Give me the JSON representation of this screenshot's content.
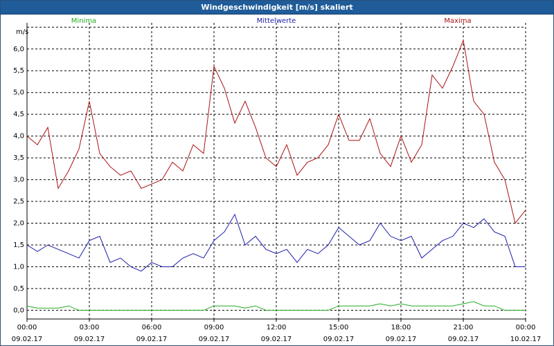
{
  "window": {
    "title": "Windgeschwindigkeit [m/s] skaliert"
  },
  "chart_data": {
    "type": "line",
    "title": "Windgeschwindigkeit [m/s] skaliert",
    "ylabel": "m/s",
    "ylim": [
      -0.2,
      6.6
    ],
    "yticks": [
      0.0,
      0.5,
      1.0,
      1.5,
      2.0,
      2.5,
      3.0,
      3.5,
      4.0,
      4.5,
      5.0,
      5.5,
      6.0
    ],
    "ytick_labels": [
      "0,0",
      "0,5",
      "1,0",
      "1,5",
      "2,0",
      "2,5",
      "3,0",
      "3,5",
      "4,0",
      "4,5",
      "5,0",
      "5,5",
      "6,0"
    ],
    "xlim_hours": [
      0,
      24
    ],
    "xticks": [
      {
        "time": "00:00",
        "date": "09.02.17"
      },
      {
        "time": "03:00",
        "date": "09.02.17"
      },
      {
        "time": "06:00",
        "date": "09.02.17"
      },
      {
        "time": "09:00",
        "date": "09.02.17"
      },
      {
        "time": "12:00",
        "date": "09.02.17"
      },
      {
        "time": "15:00",
        "date": "09.02.17"
      },
      {
        "time": "18:00",
        "date": "09.02.17"
      },
      {
        "time": "21:00",
        "date": "09.02.17"
      },
      {
        "time": "00:00",
        "date": "10.02.17"
      }
    ],
    "grid": true,
    "legend_position": "top",
    "x_hours": [
      0,
      0.5,
      1,
      1.5,
      2,
      2.5,
      3,
      3.5,
      4,
      4.5,
      5,
      5.5,
      6,
      6.5,
      7,
      7.5,
      8,
      8.5,
      9,
      9.5,
      10,
      10.5,
      11,
      11.5,
      12,
      12.5,
      13,
      13.5,
      14,
      14.5,
      15,
      15.5,
      16,
      16.5,
      17,
      17.5,
      18,
      18.5,
      19,
      19.5,
      20,
      20.5,
      21,
      21.5,
      22,
      22.5,
      23,
      23.5,
      24
    ],
    "series": [
      {
        "name": "Minima",
        "color": "#22aa22",
        "values": [
          0.1,
          0.05,
          0.05,
          0.05,
          0.1,
          0,
          0,
          0,
          0,
          0,
          0,
          0,
          0,
          0,
          0,
          0,
          0,
          0,
          0.1,
          0.1,
          0.1,
          0.05,
          0.1,
          0,
          0,
          0,
          0,
          0,
          0,
          0,
          0.1,
          0.1,
          0.1,
          0.1,
          0.15,
          0.1,
          0.15,
          0.1,
          0.1,
          0.1,
          0.1,
          0.1,
          0.15,
          0.2,
          0.1,
          0.1,
          0,
          0,
          0
        ]
      },
      {
        "name": "Mittelwerte",
        "color": "#1a1aaa",
        "values": [
          1.5,
          1.35,
          1.5,
          1.4,
          1.3,
          1.2,
          1.6,
          1.7,
          1.1,
          1.2,
          1.0,
          0.9,
          1.1,
          1.0,
          1.0,
          1.2,
          1.3,
          1.2,
          1.6,
          1.8,
          2.2,
          1.5,
          1.7,
          1.4,
          1.3,
          1.4,
          1.1,
          1.4,
          1.3,
          1.5,
          1.9,
          1.7,
          1.5,
          1.6,
          2.0,
          1.7,
          1.6,
          1.7,
          1.2,
          1.4,
          1.6,
          1.7,
          2.0,
          1.9,
          2.1,
          1.8,
          1.7,
          1.0,
          1.0
        ]
      },
      {
        "name": "Maxima",
        "color": "#aa1111",
        "values": [
          4.0,
          3.8,
          4.2,
          2.8,
          3.2,
          3.7,
          4.8,
          3.6,
          3.3,
          3.1,
          3.2,
          2.8,
          2.9,
          3.0,
          3.4,
          3.2,
          3.8,
          3.6,
          5.6,
          5.1,
          4.3,
          4.8,
          4.2,
          3.5,
          3.3,
          3.8,
          3.1,
          3.4,
          3.5,
          3.8,
          4.5,
          3.9,
          3.9,
          4.4,
          3.6,
          3.3,
          4.0,
          3.4,
          3.8,
          5.4,
          5.1,
          5.6,
          6.2,
          4.8,
          4.5,
          3.4,
          3.0,
          2.0,
          2.3
        ]
      }
    ]
  }
}
